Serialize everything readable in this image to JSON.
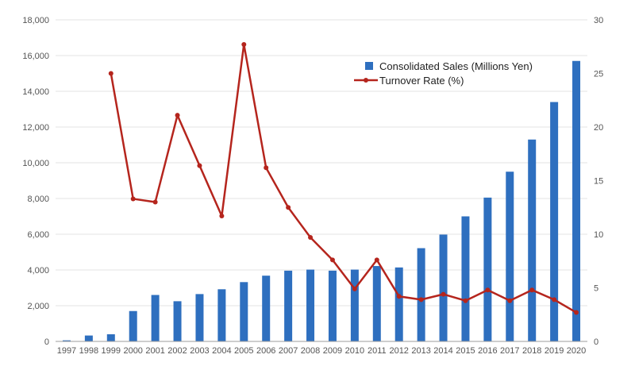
{
  "chart_data": {
    "type": "bar+line",
    "title": "",
    "categories": [
      "1997",
      "1998",
      "1999",
      "2000",
      "2001",
      "2002",
      "2003",
      "2004",
      "2005",
      "2006",
      "2007",
      "2008",
      "2009",
      "2010",
      "2011",
      "2012",
      "2013",
      "2014",
      "2015",
      "2016",
      "2017",
      "2018",
      "2019",
      "2020"
    ],
    "series": [
      {
        "name": "Consolidated Sales (Millions Yen)",
        "type": "bar",
        "axis": "left",
        "color": "#2e6fbf",
        "values": [
          60,
          330,
          400,
          1700,
          2600,
          2250,
          2650,
          2920,
          3320,
          3680,
          3960,
          4020,
          3960,
          4020,
          4220,
          4140,
          5220,
          5980,
          7000,
          8050,
          9500,
          11300,
          13400,
          15700
        ]
      },
      {
        "name": "Turnover Rate (%)",
        "type": "line",
        "axis": "right",
        "color": "#b5251d",
        "values": [
          null,
          null,
          25.0,
          13.3,
          13.0,
          21.1,
          16.4,
          11.7,
          27.7,
          16.2,
          12.5,
          9.7,
          7.6,
          4.9,
          7.6,
          4.2,
          3.9,
          4.4,
          3.8,
          4.8,
          3.8,
          4.8,
          3.9,
          2.7
        ]
      }
    ],
    "y_left": {
      "min": 0,
      "max": 18000,
      "step": 2000,
      "tick_labels": [
        "0",
        "2,000",
        "4,000",
        "6,000",
        "8,000",
        "10,000",
        "12,000",
        "14,000",
        "16,000",
        "18,000"
      ]
    },
    "y_right": {
      "min": 0,
      "max": 30,
      "step": 5,
      "tick_labels": [
        "0",
        "5",
        "10",
        "15",
        "20",
        "25",
        "30"
      ]
    },
    "grid": true,
    "legend_position": "top-right"
  }
}
